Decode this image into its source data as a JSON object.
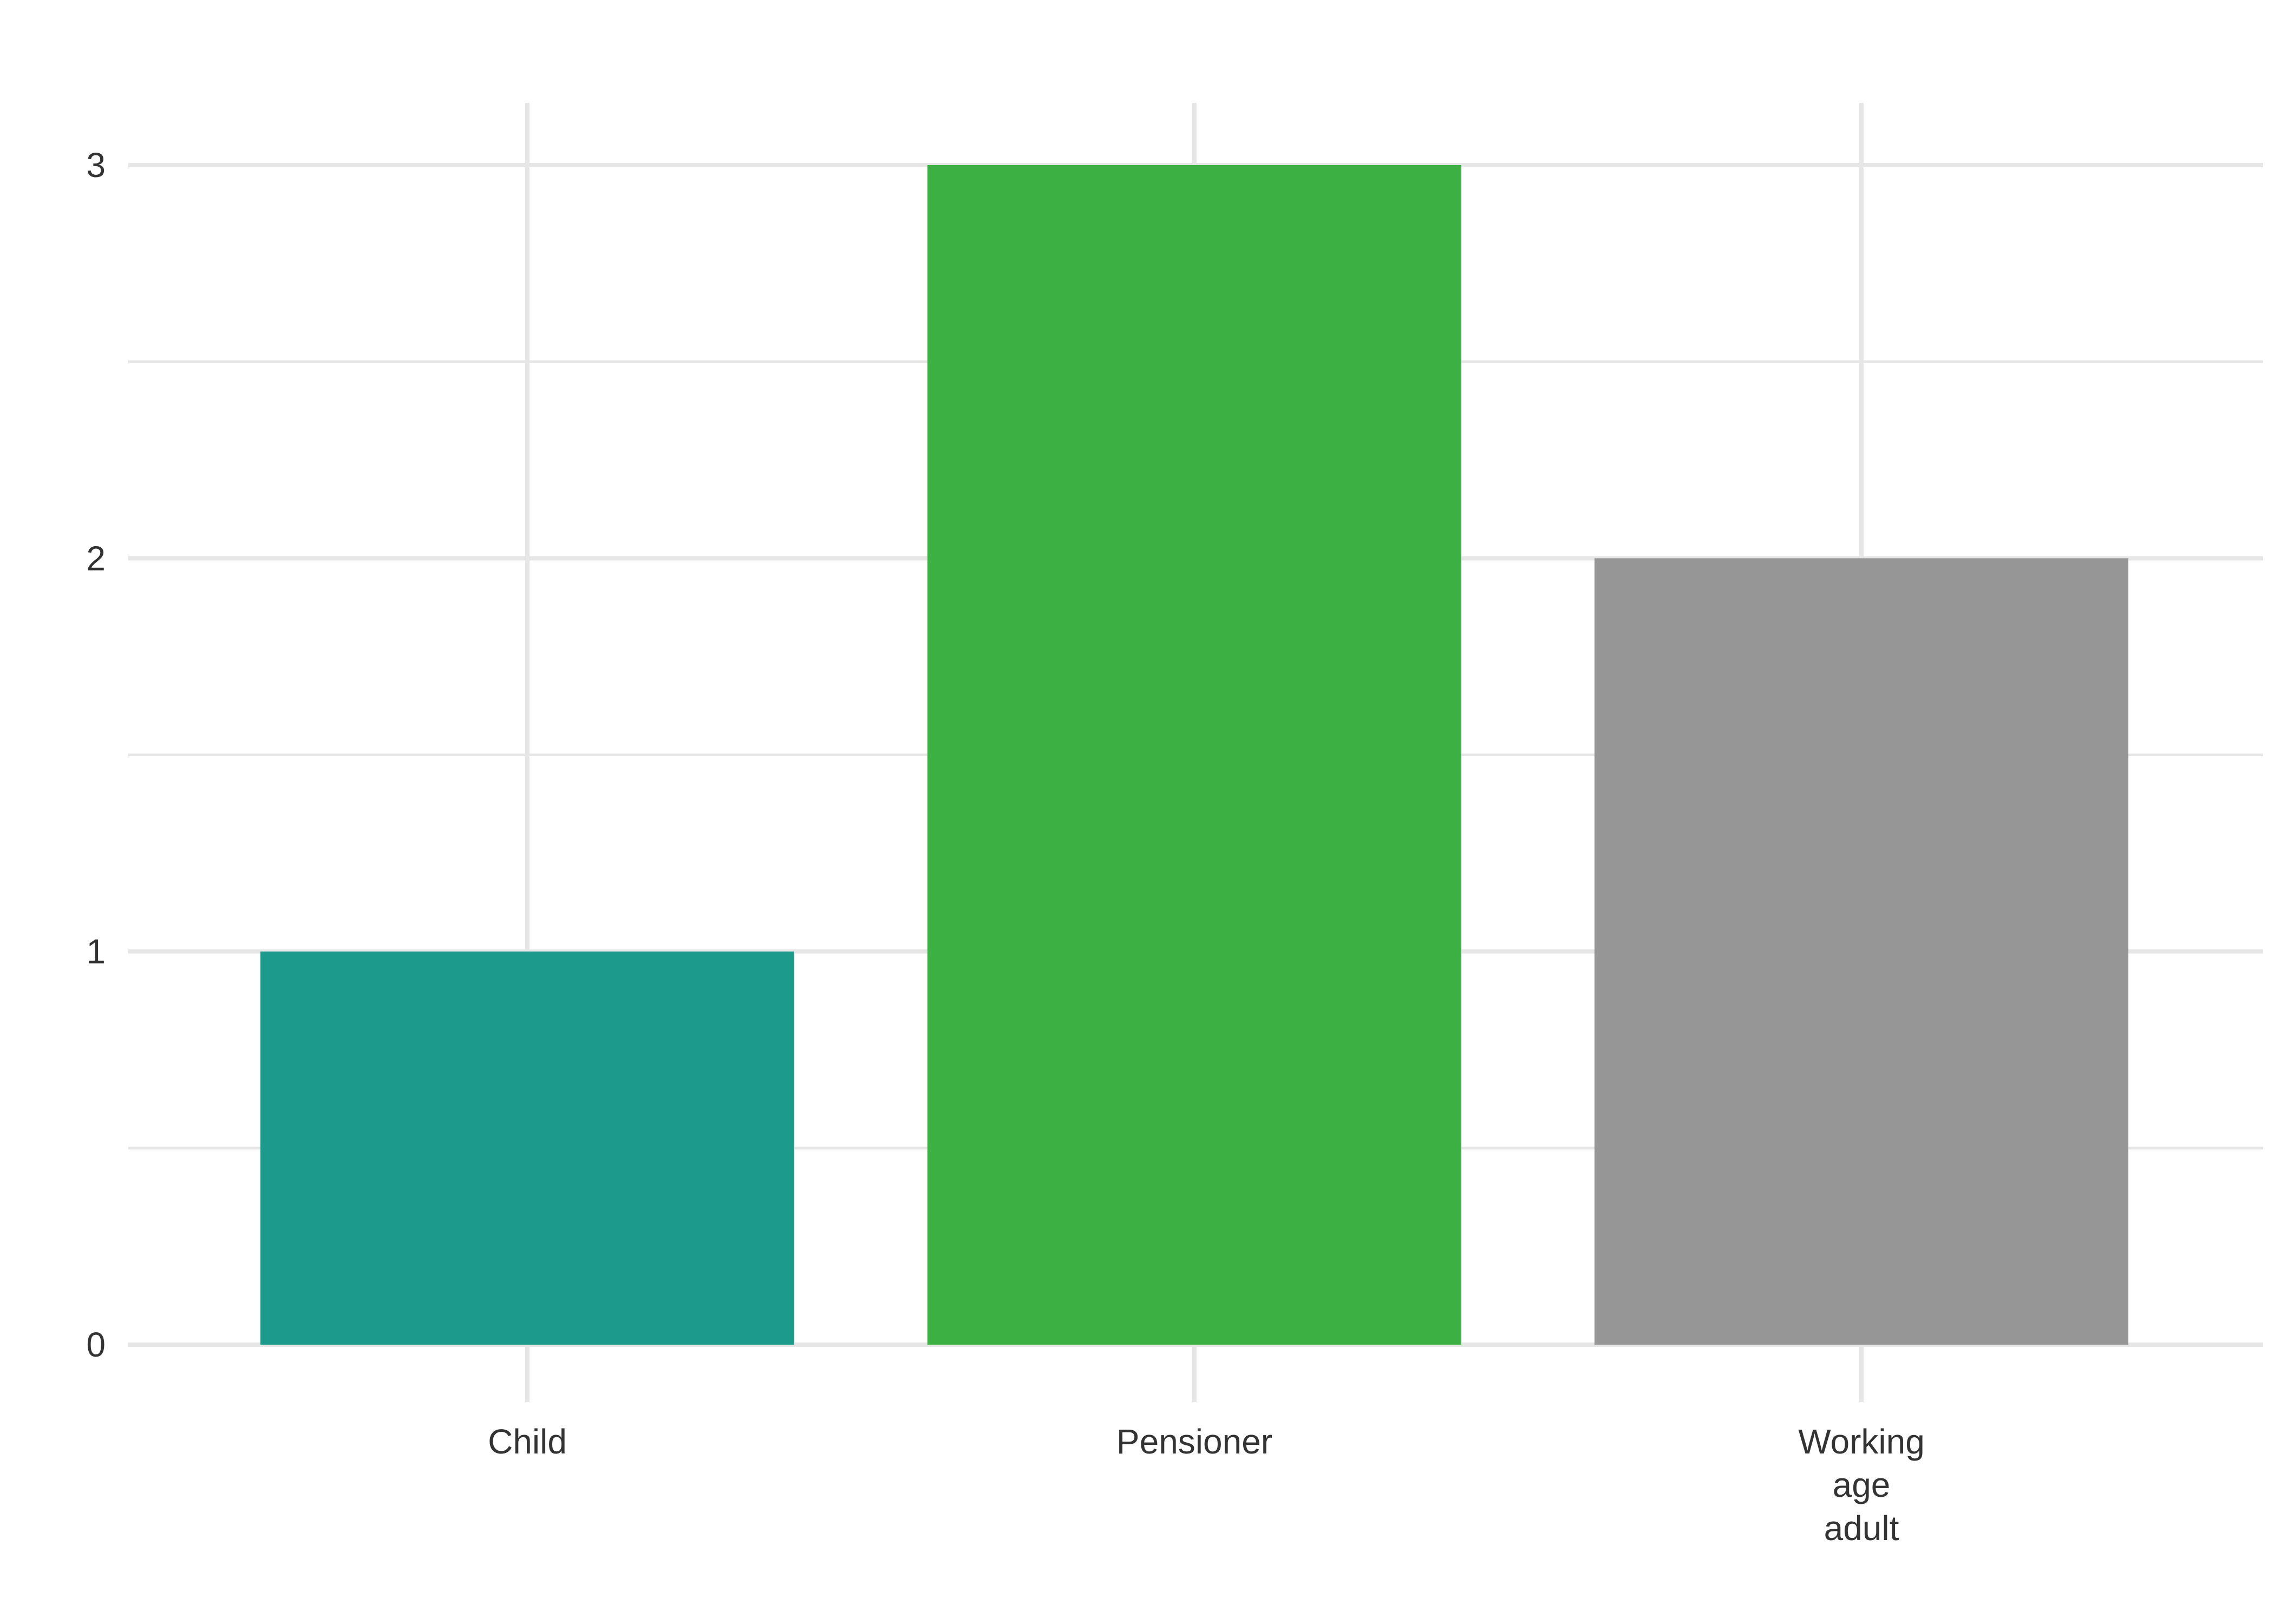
{
  "chart_data": {
    "type": "bar",
    "categories": [
      "Child",
      "Pensioner",
      "Working age adult"
    ],
    "category_label_lines": [
      [
        "Child"
      ],
      [
        "Pensioner"
      ],
      [
        "Working",
        "age",
        "adult"
      ]
    ],
    "values": [
      1,
      3,
      2
    ],
    "colors": [
      "#1c9a8c",
      "#3cb043",
      "#979696"
    ],
    "title": "",
    "xlabel": "",
    "ylabel": "",
    "ylim": [
      0,
      3
    ],
    "yticks": [
      0,
      1,
      2,
      3
    ],
    "grid": true,
    "legend": "none"
  },
  "theme": {
    "background": "#ffffff",
    "grid_color": "#e6e6e6",
    "text_color": "#333333"
  }
}
